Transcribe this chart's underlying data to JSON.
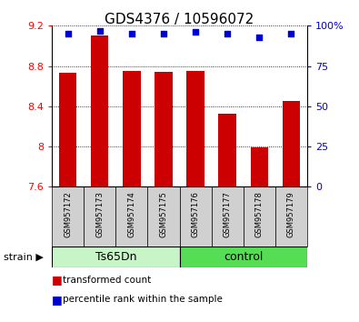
{
  "title": "GDS4376 / 10596072",
  "samples": [
    "GSM957172",
    "GSM957173",
    "GSM957174",
    "GSM957175",
    "GSM957176",
    "GSM957177",
    "GSM957178",
    "GSM957179"
  ],
  "bar_values": [
    8.73,
    9.1,
    8.75,
    8.74,
    8.75,
    8.33,
    7.99,
    8.45
  ],
  "percentile_values": [
    95,
    97,
    95,
    95,
    96,
    95,
    93,
    95
  ],
  "bar_color": "#cc0000",
  "dot_color": "#0000cc",
  "ylim_left": [
    7.6,
    9.2
  ],
  "ylim_right": [
    0,
    100
  ],
  "yticks_left": [
    7.6,
    8.0,
    8.4,
    8.8,
    9.2
  ],
  "ytick_labels_left": [
    "7.6",
    "8",
    "8.4",
    "8.8",
    "9.2"
  ],
  "yticks_right": [
    0,
    25,
    50,
    75,
    100
  ],
  "ytick_labels_right": [
    "0",
    "25",
    "50",
    "75",
    "100%"
  ],
  "groups": [
    {
      "label": "Ts65Dn",
      "start": 0,
      "end": 3,
      "color": "#c8f5c8"
    },
    {
      "label": "control",
      "start": 4,
      "end": 7,
      "color": "#55dd55"
    }
  ],
  "legend_items": [
    {
      "label": "transformed count",
      "color": "#cc0000"
    },
    {
      "label": "percentile rank within the sample",
      "color": "#0000cc"
    }
  ],
  "bg_color": "#ffffff",
  "bar_width": 0.55,
  "title_fontsize": 11,
  "tick_fontsize": 8,
  "sample_fontsize": 6,
  "group_fontsize": 9
}
